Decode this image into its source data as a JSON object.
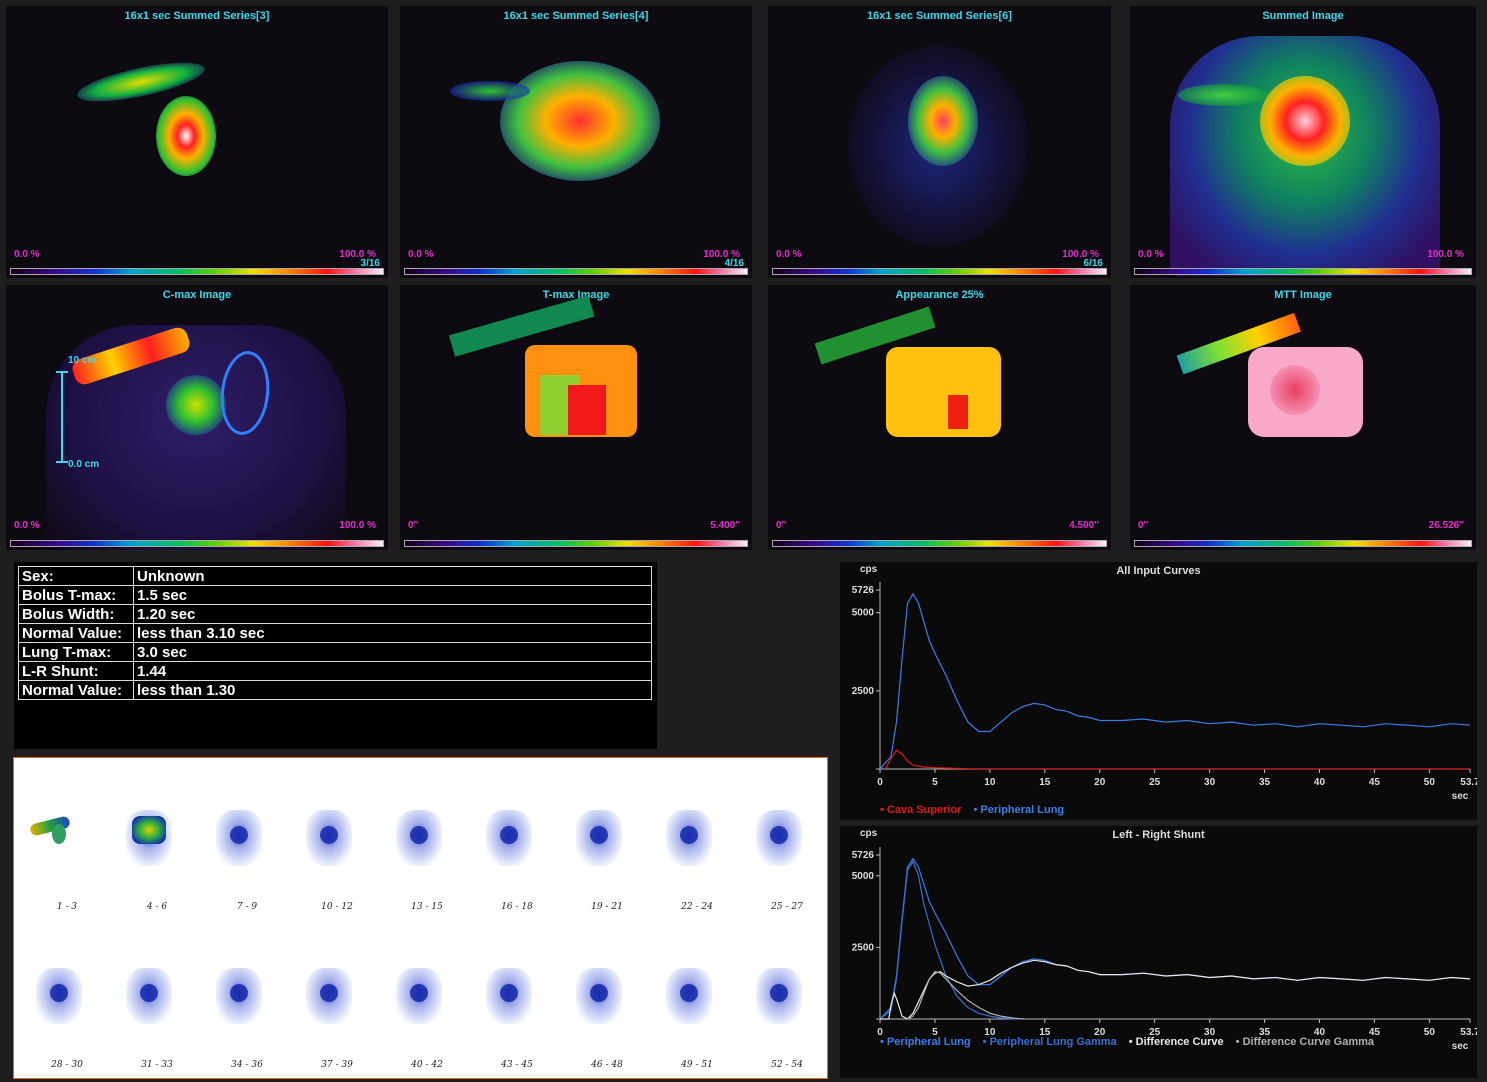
{
  "panels": [
    {
      "id": "p1",
      "title": "16x1 sec Summed Series[3]",
      "lo": "0.0 %",
      "hi": "100.0 %",
      "frame": "3/16"
    },
    {
      "id": "p2",
      "title": "16x1 sec Summed Series[4]",
      "lo": "0.0 %",
      "hi": "100.0 %",
      "frame": "4/16"
    },
    {
      "id": "p3",
      "title": "16x1 sec Summed Series[6]",
      "lo": "0.0 %",
      "hi": "100.0 %",
      "frame": "6/16"
    },
    {
      "id": "p4",
      "title": "Summed Image",
      "lo": "0.0 %",
      "hi": "100.0 %",
      "frame": ""
    },
    {
      "id": "p5",
      "title": "C-max Image",
      "lo": "0.0 %",
      "hi": "100.0 %",
      "frame": "",
      "scale_top": "10 cm",
      "scale_bottom": "0.0 cm"
    },
    {
      "id": "p6",
      "title": "T-max Image",
      "lo": "0''",
      "hi": "5.400''",
      "frame": ""
    },
    {
      "id": "p7",
      "title": "Appearance 25%",
      "lo": "0''",
      "hi": "4.500''",
      "frame": ""
    },
    {
      "id": "p8",
      "title": "MTT Image",
      "lo": "0''",
      "hi": "26.526''",
      "frame": ""
    }
  ],
  "info": [
    {
      "k": "Sex:",
      "v": "Unknown"
    },
    {
      "k": "Bolus T-max:",
      "v": "1.5 sec"
    },
    {
      "k": "Bolus Width:",
      "v": "1.20 sec"
    },
    {
      "k": "Normal Value:",
      "v": "less than 3.10 sec"
    },
    {
      "k": "Lung T-max:",
      "v": "3.0 sec"
    },
    {
      "k": "L-R Shunt:",
      "v": "1.44"
    },
    {
      "k": "Normal Value:",
      "v": "less than 1.30"
    }
  ],
  "thumb_labels": [
    "1 - 3",
    "4 - 6",
    "7 - 9",
    "10 - 12",
    "13 - 15",
    "16 - 18",
    "19 - 21",
    "22 - 24",
    "25 - 27",
    "28 - 30",
    "31 - 33",
    "34 - 36",
    "37 - 39",
    "40 - 42",
    "43 - 45",
    "46 - 48",
    "49 - 51",
    "52 - 54"
  ],
  "chart_data": [
    {
      "type": "line",
      "title": "All Input Curves",
      "ylabel": "cps",
      "xlabel": "sec",
      "ylim": [
        0,
        5726
      ],
      "yticks": [
        2500,
        5000,
        5726
      ],
      "xlim": [
        0,
        53.7
      ],
      "xticks": [
        0,
        5,
        10,
        15,
        20,
        25,
        30,
        35,
        40,
        45,
        50,
        53.7
      ],
      "series": [
        {
          "name": "Cava Superior",
          "color": "#e01818",
          "x": [
            0.5,
            1,
            1.5,
            2,
            2.5,
            3,
            4,
            5,
            6,
            7,
            8,
            10,
            15,
            20,
            25,
            30,
            35,
            40,
            45,
            50,
            53.7
          ],
          "y": [
            0,
            350,
            600,
            480,
            250,
            120,
            60,
            40,
            30,
            20,
            10,
            5,
            5,
            5,
            5,
            5,
            5,
            5,
            5,
            5,
            5
          ]
        },
        {
          "name": "Peripheral Lung",
          "color": "#3a7de8",
          "x": [
            0,
            1,
            1.5,
            2,
            2.5,
            3,
            3.5,
            4,
            4.5,
            5,
            6,
            7,
            8,
            9,
            10,
            11,
            12,
            13,
            14,
            15,
            16,
            17,
            18,
            19,
            20,
            22,
            24,
            26,
            28,
            30,
            32,
            34,
            36,
            38,
            40,
            42,
            44,
            46,
            48,
            50,
            52,
            53.7
          ],
          "y": [
            0,
            400,
            1500,
            3500,
            5300,
            5600,
            5300,
            4700,
            4100,
            3700,
            3000,
            2200,
            1500,
            1200,
            1200,
            1500,
            1800,
            2000,
            2100,
            2050,
            1900,
            1850,
            1700,
            1650,
            1550,
            1550,
            1600,
            1500,
            1550,
            1450,
            1500,
            1400,
            1450,
            1350,
            1450,
            1400,
            1350,
            1450,
            1400,
            1350,
            1450,
            1400
          ]
        }
      ]
    },
    {
      "type": "line",
      "title": "Left - Right Shunt",
      "ylabel": "cps",
      "xlabel": "sec",
      "ylim": [
        0,
        5726
      ],
      "yticks": [
        2500,
        5000,
        5726
      ],
      "xlim": [
        0,
        53.7
      ],
      "xticks": [
        0,
        5,
        10,
        15,
        20,
        25,
        30,
        35,
        40,
        45,
        50,
        53.7
      ],
      "series": [
        {
          "name": "Peripheral Lung",
          "color": "#3a7de8",
          "x": [
            0,
            1,
            1.5,
            2,
            2.5,
            3,
            3.5,
            4,
            4.5,
            5,
            6,
            7,
            8,
            9,
            10,
            11,
            12,
            13,
            14,
            15,
            16,
            17,
            18,
            19,
            20,
            22,
            24,
            26,
            28,
            30,
            32,
            34,
            36,
            38,
            40,
            42,
            44,
            46,
            48,
            50,
            52,
            53.7
          ],
          "y": [
            0,
            400,
            1500,
            3500,
            5300,
            5600,
            5300,
            4700,
            4100,
            3700,
            3000,
            2200,
            1500,
            1200,
            1200,
            1500,
            1800,
            2000,
            2100,
            2050,
            1900,
            1850,
            1700,
            1650,
            1550,
            1550,
            1600,
            1500,
            1550,
            1450,
            1500,
            1400,
            1450,
            1350,
            1450,
            1400,
            1350,
            1450,
            1400,
            1350,
            1450,
            1400
          ]
        },
        {
          "name": "Peripheral Lung Gamma",
          "color": "#3a6ed0",
          "x": [
            0,
            1,
            1.5,
            2,
            2.5,
            3,
            3.5,
            4,
            5,
            6,
            7,
            8,
            9,
            10,
            11,
            12,
            13
          ],
          "y": [
            0,
            300,
            1400,
            3400,
            5200,
            5500,
            5000,
            4000,
            2600,
            1500,
            800,
            400,
            200,
            100,
            40,
            10,
            0
          ]
        },
        {
          "name": "Difference Curve",
          "color": "#e8e8e8",
          "x": [
            0,
            0.8,
            1,
            1.3,
            1.6,
            2,
            2.5,
            3,
            3.5,
            4,
            4.5,
            5,
            5.5,
            6,
            7,
            8,
            9,
            10,
            11,
            12,
            13,
            14,
            15,
            16,
            17,
            18,
            19,
            20,
            22,
            24,
            26,
            28,
            30,
            32,
            34,
            36,
            38,
            40,
            42,
            44,
            46,
            48,
            50,
            52,
            53.7
          ],
          "y": [
            0,
            0,
            500,
            900,
            600,
            100,
            0,
            200,
            600,
            1000,
            1400,
            1600,
            1650,
            1500,
            1300,
            1150,
            1200,
            1350,
            1600,
            1800,
            1950,
            2050,
            2000,
            1900,
            1850,
            1700,
            1650,
            1550,
            1550,
            1600,
            1500,
            1550,
            1450,
            1500,
            1400,
            1450,
            1350,
            1450,
            1400,
            1350,
            1450,
            1400,
            1350,
            1450,
            1400
          ]
        },
        {
          "name": "Difference Curve Gamma",
          "color": "#b0b0b0",
          "x": [
            2.5,
            3,
            3.5,
            4,
            4.5,
            5,
            5.5,
            6,
            7,
            8,
            9,
            10,
            11,
            12,
            13
          ],
          "y": [
            0,
            100,
            400,
            900,
            1400,
            1650,
            1600,
            1400,
            1000,
            650,
            400,
            200,
            100,
            40,
            0
          ]
        }
      ]
    }
  ]
}
